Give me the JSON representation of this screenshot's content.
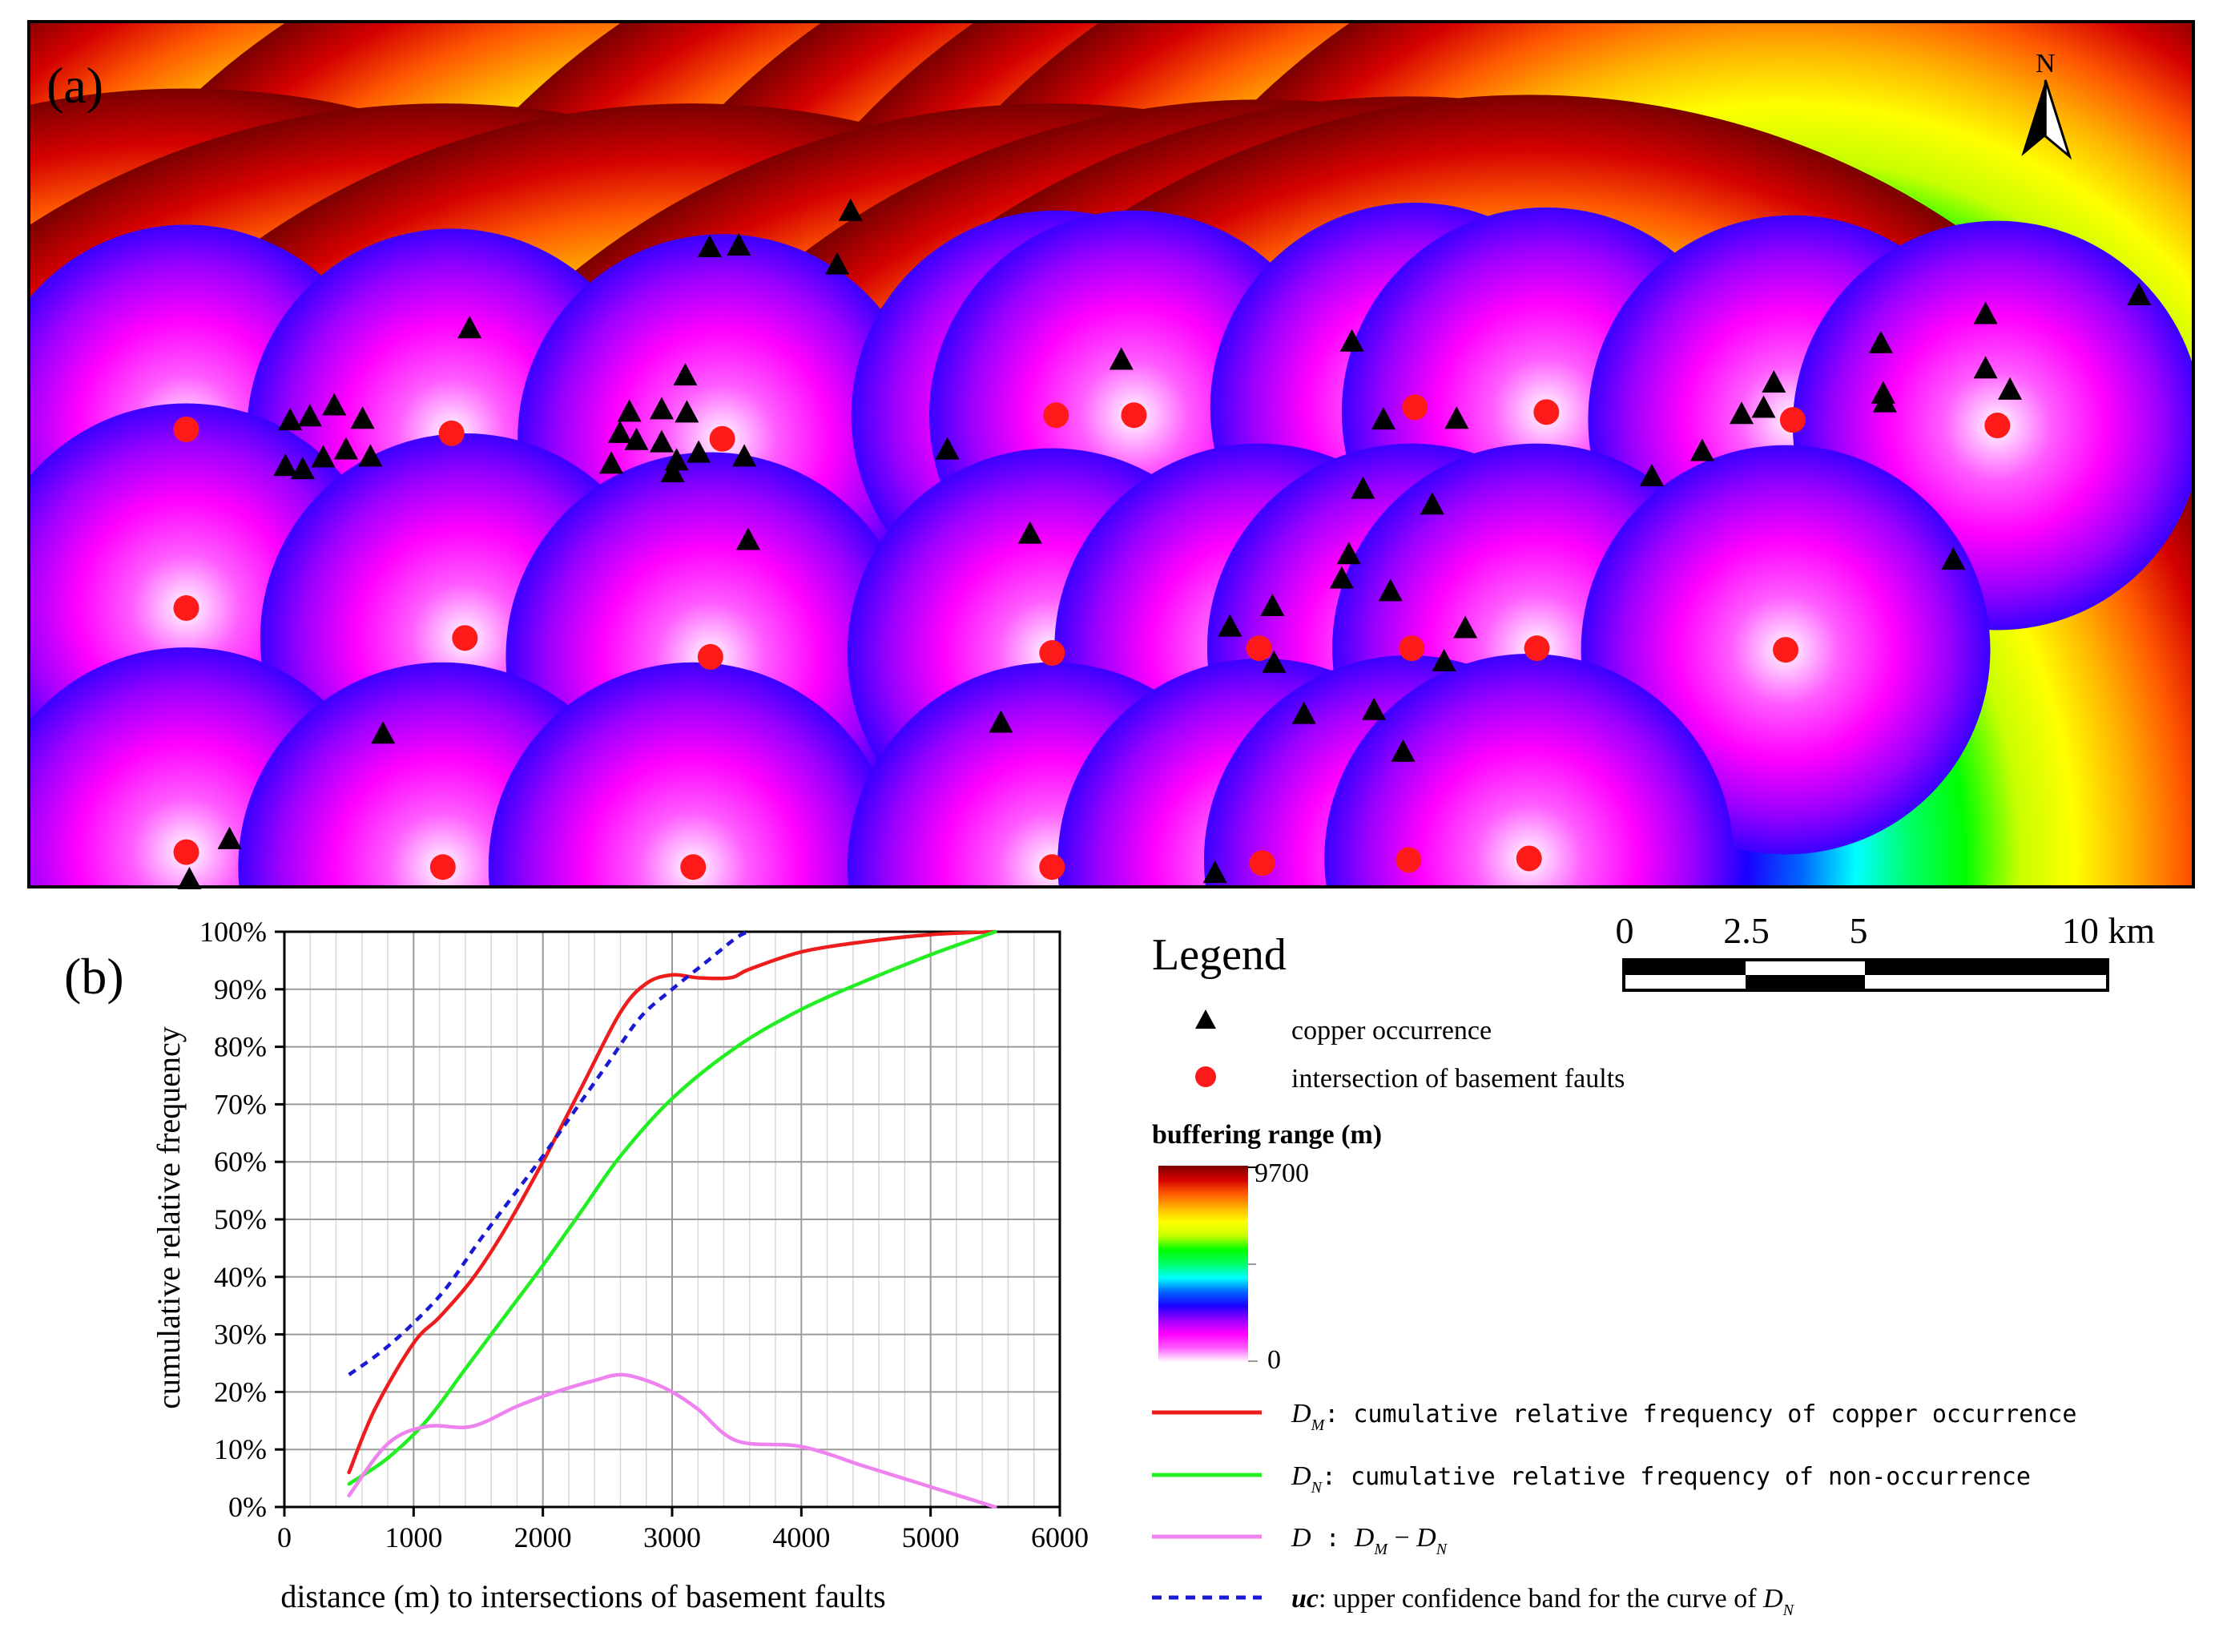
{
  "panel_a": {
    "label": "(a)",
    "north_label": "N",
    "color_stops": [
      "#ffffff",
      "#ff5cff",
      "#ff00ff",
      "#9a00ff",
      "#1a00ff",
      "#0066ff",
      "#00ffff",
      "#00ff66",
      "#00ff00",
      "#c8ff00",
      "#ffff00",
      "#ffb400",
      "#ff5a00",
      "#d40000",
      "#7a0000"
    ],
    "buffer_max_m": 9700,
    "fault_intersections": [
      [
        2.0,
        5.18
      ],
      [
        5.37,
        5.23
      ],
      [
        8.81,
        5.3
      ],
      [
        13.05,
        5.0
      ],
      [
        14.04,
        5.0
      ],
      [
        17.61,
        4.9
      ],
      [
        19.28,
        4.96
      ],
      [
        22.41,
        5.06
      ],
      [
        25.01,
        5.13
      ],
      [
        2.0,
        7.45
      ],
      [
        5.54,
        7.83
      ],
      [
        8.66,
        8.07
      ],
      [
        13.0,
        8.02
      ],
      [
        15.63,
        7.96
      ],
      [
        17.57,
        7.96
      ],
      [
        19.16,
        7.96
      ],
      [
        22.32,
        7.98
      ],
      [
        2.0,
        10.55
      ],
      [
        5.26,
        10.74
      ],
      [
        8.44,
        10.74
      ],
      [
        13.0,
        10.74
      ],
      [
        15.67,
        10.69
      ],
      [
        17.53,
        10.65
      ],
      [
        19.06,
        10.63
      ]
    ],
    "copper_occurrences": [
      [
        10.44,
        2.4
      ],
      [
        8.65,
        2.86
      ],
      [
        9.02,
        2.84
      ],
      [
        10.27,
        3.08
      ],
      [
        5.6,
        3.89
      ],
      [
        13.88,
        4.29
      ],
      [
        16.81,
        4.06
      ],
      [
        24.86,
        4.4
      ],
      [
        26.81,
        3.47
      ],
      [
        23.53,
        4.08
      ],
      [
        24.86,
        3.71
      ],
      [
        22.17,
        4.58
      ],
      [
        23.56,
        4.72
      ],
      [
        21.76,
        4.98
      ],
      [
        22.04,
        4.9
      ],
      [
        23.58,
        4.83
      ],
      [
        25.17,
        4.67
      ],
      [
        17.21,
        5.05
      ],
      [
        18.14,
        5.04
      ],
      [
        3.32,
        5.06
      ],
      [
        3.57,
        5.01
      ],
      [
        3.88,
        4.87
      ],
      [
        4.24,
        5.04
      ],
      [
        3.26,
        5.64
      ],
      [
        3.48,
        5.68
      ],
      [
        3.74,
        5.53
      ],
      [
        4.03,
        5.43
      ],
      [
        4.34,
        5.52
      ],
      [
        8.34,
        4.49
      ],
      [
        7.63,
        4.95
      ],
      [
        8.04,
        4.92
      ],
      [
        8.36,
        4.96
      ],
      [
        7.51,
        5.22
      ],
      [
        7.72,
        5.31
      ],
      [
        8.04,
        5.34
      ],
      [
        7.4,
        5.61
      ],
      [
        8.23,
        5.57
      ],
      [
        8.51,
        5.47
      ],
      [
        8.18,
        5.72
      ],
      [
        9.09,
        5.52
      ],
      [
        11.67,
        5.43
      ],
      [
        16.95,
        5.93
      ],
      [
        17.83,
        6.13
      ],
      [
        20.62,
        5.77
      ],
      [
        21.26,
        5.45
      ],
      [
        9.14,
        6.58
      ],
      [
        12.72,
        6.5
      ],
      [
        16.77,
        6.76
      ],
      [
        16.68,
        7.07
      ],
      [
        17.3,
        7.23
      ],
      [
        15.8,
        7.42
      ],
      [
        15.26,
        7.68
      ],
      [
        18.25,
        7.7
      ],
      [
        15.82,
        8.14
      ],
      [
        17.98,
        8.12
      ],
      [
        16.2,
        8.79
      ],
      [
        17.09,
        8.74
      ],
      [
        12.35,
        8.9
      ],
      [
        4.5,
        9.04
      ],
      [
        17.46,
        9.27
      ],
      [
        2.55,
        10.38
      ],
      [
        2.04,
        10.89
      ],
      [
        15.07,
        10.81
      ],
      [
        24.45,
        6.83
      ]
    ]
  },
  "north_arrow_x_km": 25.62,
  "scale_bar": {
    "labels": [
      "0",
      "2.5",
      "5",
      "10 km"
    ]
  },
  "legend": {
    "title": "Legend",
    "copper_label": "copper occurrence",
    "fault_label": "intersection of basement faults",
    "buffer_title": "buffering range (m)",
    "buffer_max_label": "9700",
    "buffer_min_label": "0",
    "dm_symbol": "D",
    "dm_sub": "M",
    "dm_text": ": cumulative relative frequency of copper occurrence",
    "dn_symbol": "D",
    "dn_sub": "N",
    "dn_text": ": cumulative relative frequency of non-occurrence",
    "d_symbol": "D",
    "d_sep": " : ",
    "d_expr_a": "D",
    "d_expr_a_sub": "M",
    "d_expr_minus": " − ",
    "d_expr_b": "D",
    "d_expr_b_sub": "N",
    "uc_symbol": "uc",
    "uc_text": ": upper confidence band for the curve of ",
    "uc_ref": "D",
    "uc_ref_sub": "N"
  },
  "chart_data": {
    "panel_label": "(b)",
    "type": "line",
    "xlabel": "distance (m) to intersections of basement faults",
    "ylabel": "cumulative relative frequency",
    "xlim": [
      0,
      6000
    ],
    "ylim": [
      0,
      100
    ],
    "x_ticks": [
      0,
      1000,
      2000,
      3000,
      4000,
      5000,
      6000
    ],
    "y_ticks": [
      0,
      10,
      20,
      30,
      40,
      50,
      60,
      70,
      80,
      90,
      100
    ],
    "y_tick_suffix": "%",
    "grid": true,
    "series": [
      {
        "name": "D_M",
        "color": "#ee1c1c",
        "dash": "none",
        "x": [
          500,
          700,
          1000,
          1200,
          1450,
          1700,
          2000,
          2300,
          2600,
          2800,
          3000,
          3200,
          3450,
          3600,
          4000,
          4500,
          5000,
          5500
        ],
        "y": [
          6,
          17,
          28.5,
          33,
          39.5,
          48,
          60,
          73,
          86,
          91,
          92.5,
          92,
          92,
          93.5,
          96.5,
          98.3,
          99.5,
          100
        ]
      },
      {
        "name": "D_N",
        "color": "#22ee22",
        "dash": "none",
        "x": [
          500,
          800,
          1100,
          1400,
          1700,
          2000,
          2300,
          2600,
          3000,
          3500,
          4000,
          4500,
          5000,
          5500
        ],
        "y": [
          4,
          8.5,
          15,
          24,
          33,
          42,
          51.5,
          61,
          71,
          80,
          86.5,
          91.5,
          96,
          100
        ]
      },
      {
        "name": "D",
        "color": "#ee82ee",
        "dash": "none",
        "x": [
          500,
          800,
          1100,
          1450,
          1800,
          2100,
          2400,
          2600,
          2800,
          3000,
          3200,
          3500,
          4000,
          4500,
          5000,
          5500
        ],
        "y": [
          2,
          11,
          14,
          14,
          17.5,
          20,
          22,
          23,
          22,
          20,
          17,
          11.5,
          10.5,
          7,
          3.5,
          0
        ]
      },
      {
        "name": "uc",
        "color": "#1a1ad6",
        "dash": "10,8",
        "x": [
          500,
          750,
          1000,
          1250,
          1500,
          1750,
          2000,
          2250,
          2500,
          2750,
          3000,
          3250,
          3500,
          3600
        ],
        "y": [
          23,
          27,
          32,
          38,
          46,
          53.5,
          61,
          69,
          77,
          85,
          90,
          94.5,
          99,
          100
        ]
      }
    ]
  }
}
